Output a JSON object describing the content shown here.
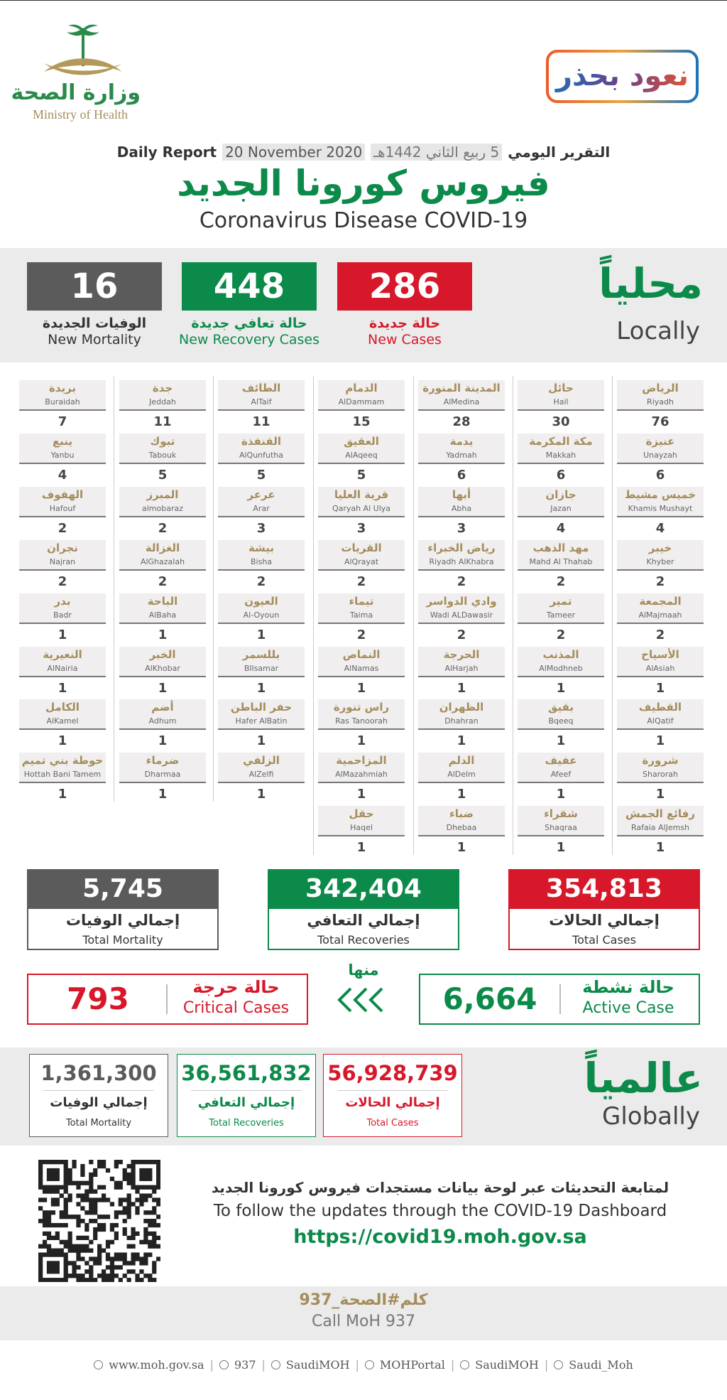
{
  "header": {
    "logo_ar": "وزارة الصحة",
    "logo_en": "Ministry of Health",
    "campaign": "نعود بحذر",
    "report_ar": "التقرير اليومي",
    "hijri": "5 ربيع الثاني 1442هـ",
    "report_en": "Daily Report",
    "date": "20 November 2020",
    "title_ar": "فيروس كورونا الجديد",
    "title_en": "Coronavirus Disease COVID-19"
  },
  "local": {
    "label_ar": "محلياً",
    "label_en": "Locally",
    "stats": [
      {
        "value": 286,
        "label_ar": "حالة جديدة",
        "label_en": "New Cases"
      },
      {
        "value": 448,
        "label_ar": "حالة تعافي جديدة",
        "label_en": "New Recovery Cases"
      },
      {
        "value": 16,
        "label_ar": "الوفيات الجديدة",
        "label_en": "New Mortality"
      }
    ]
  },
  "cities": [
    [
      {
        "ar": "الرياض",
        "en": "Riyadh",
        "cases": 76
      },
      {
        "ar": "عنيزة",
        "en": "Unayzah",
        "cases": 6
      },
      {
        "ar": "خميس مشيط",
        "en": "Khamis Mushayt",
        "cases": 4
      },
      {
        "ar": "خيبر",
        "en": "Khyber",
        "cases": 2
      },
      {
        "ar": "المجمعة",
        "en": "AlMajmaah",
        "cases": 2
      },
      {
        "ar": "الأسياح",
        "en": "AlAsiah",
        "cases": 1
      },
      {
        "ar": "القطيف",
        "en": "AlQatif",
        "cases": 1
      },
      {
        "ar": "شرورة",
        "en": "Sharorah",
        "cases": 1
      },
      {
        "ar": "رفائع الجمش",
        "en": "Rafaia AlJemsh",
        "cases": 1
      }
    ],
    [
      {
        "ar": "حائل",
        "en": "Hail",
        "cases": 30
      },
      {
        "ar": "مكة المكرمة",
        "en": "Makkah",
        "cases": 6
      },
      {
        "ar": "جازان",
        "en": "Jazan",
        "cases": 4
      },
      {
        "ar": "مهد الذهب",
        "en": "Mahd Al Thahab",
        "cases": 2
      },
      {
        "ar": "تمير",
        "en": "Tameer",
        "cases": 2
      },
      {
        "ar": "المذنب",
        "en": "AlModhneb",
        "cases": 1
      },
      {
        "ar": "بقيق",
        "en": "Bqeeq",
        "cases": 1
      },
      {
        "ar": "عفيف",
        "en": "Afeef",
        "cases": 1
      },
      {
        "ar": "شقراء",
        "en": "Shaqraa",
        "cases": 1
      }
    ],
    [
      {
        "ar": "المدينة المنورة",
        "en": "AlMedina",
        "cases": 28
      },
      {
        "ar": "يدمة",
        "en": "Yadmah",
        "cases": 6
      },
      {
        "ar": "أبها",
        "en": "Abha",
        "cases": 3
      },
      {
        "ar": "رياض الخبراء",
        "en": "Riyadh AlKhabra",
        "cases": 2
      },
      {
        "ar": "وادي الدواسر",
        "en": "Wadi ALDawasir",
        "cases": 2
      },
      {
        "ar": "الحرجة",
        "en": "AlHarjah",
        "cases": 1
      },
      {
        "ar": "الظهران",
        "en": "Dhahran",
        "cases": 1
      },
      {
        "ar": "الدلم",
        "en": "AlDelm",
        "cases": 1
      },
      {
        "ar": "ضباء",
        "en": "Dhebaa",
        "cases": 1
      }
    ],
    [
      {
        "ar": "الدمام",
        "en": "AlDammam",
        "cases": 15
      },
      {
        "ar": "العقيق",
        "en": "AlAqeeq",
        "cases": 5
      },
      {
        "ar": "قرية العليا",
        "en": "Qaryah Al Ulya",
        "cases": 3
      },
      {
        "ar": "القريات",
        "en": "AlQrayat",
        "cases": 2
      },
      {
        "ar": "تيماء",
        "en": "Taima",
        "cases": 2
      },
      {
        "ar": "النماص",
        "en": "AlNamas",
        "cases": 1
      },
      {
        "ar": "راس تنورة",
        "en": "Ras Tanoorah",
        "cases": 1
      },
      {
        "ar": "المزاحمية",
        "en": "AlMazahmiah",
        "cases": 1
      },
      {
        "ar": "حقل",
        "en": "Haqel",
        "cases": 1
      }
    ],
    [
      {
        "ar": "الطائف",
        "en": "AlTaif",
        "cases": 11
      },
      {
        "ar": "القنفذة",
        "en": "AlQunfutha",
        "cases": 5
      },
      {
        "ar": "عرعر",
        "en": "Arar",
        "cases": 3
      },
      {
        "ar": "بيشة",
        "en": "Bisha",
        "cases": 2
      },
      {
        "ar": "العيون",
        "en": "Al-Oyoun",
        "cases": 1
      },
      {
        "ar": "بللسمر",
        "en": "BIlsamar",
        "cases": 1
      },
      {
        "ar": "حفر الباطن",
        "en": "Hafer AlBatin",
        "cases": 1
      },
      {
        "ar": "الزلفي",
        "en": "AlZelfi",
        "cases": 1
      }
    ],
    [
      {
        "ar": "جدة",
        "en": "Jeddah",
        "cases": 11
      },
      {
        "ar": "تبوك",
        "en": "Tabouk",
        "cases": 5
      },
      {
        "ar": "المبرز",
        "en": "almobaraz",
        "cases": 2
      },
      {
        "ar": "الغزالة",
        "en": "AlGhazalah",
        "cases": 2
      },
      {
        "ar": "الباحة",
        "en": "AlBaha",
        "cases": 1
      },
      {
        "ar": "الخبر",
        "en": "AlKhobar",
        "cases": 1
      },
      {
        "ar": "أضم",
        "en": "Adhum",
        "cases": 1
      },
      {
        "ar": "ضرماء",
        "en": "Dharmaa",
        "cases": 1
      }
    ],
    [
      {
        "ar": "بريدة",
        "en": "Buraidah",
        "cases": 7
      },
      {
        "ar": "ينبع",
        "en": "Yanbu",
        "cases": 4
      },
      {
        "ar": "الهفوف",
        "en": "Hafouf",
        "cases": 2
      },
      {
        "ar": "نجران",
        "en": "Najran",
        "cases": 2
      },
      {
        "ar": "بدر",
        "en": "Badr",
        "cases": 1
      },
      {
        "ar": "النعيرية",
        "en": "AlNairia",
        "cases": 1
      },
      {
        "ar": "الكامل",
        "en": "AlKamel",
        "cases": 1
      },
      {
        "ar": "حوطة بني تميم",
        "en": "Hottah Bani Tamem",
        "cases": 1
      }
    ]
  ],
  "totals": [
    {
      "value": "354,813",
      "label_ar": "إجمالي الحالات",
      "label_en": "Total Cases"
    },
    {
      "value": "342,404",
      "label_ar": "إجمالي التعافي",
      "label_en": "Total Recoveries"
    },
    {
      "value": "5,745",
      "label_ar": "إجمالي الوفيات",
      "label_en": "Total Mortality"
    }
  ],
  "of_which": "منها",
  "active": {
    "value": "6,664",
    "label_ar": "حالة نشطة",
    "label_en": "Active Case"
  },
  "critical": {
    "value": 793,
    "label_ar": "حالة حرجة",
    "label_en": "Critical Cases"
  },
  "global": {
    "label_ar": "عالمياً",
    "label_en": "Globally",
    "stats": [
      {
        "value": "56,928,739",
        "label_ar": "إجمالي الحالات",
        "label_en": "Total Cases"
      },
      {
        "value": "36,561,832",
        "label_ar": "إجمالي التعافي",
        "label_en": "Total Recoveries"
      },
      {
        "value": "1,361,300",
        "label_ar": "إجمالي الوفيات",
        "label_en": "Total Mortality"
      }
    ]
  },
  "footer": {
    "follow_ar": "لمتابعة التحديثات عبر لوحة بيانات مستجدات فيروس كورونا الجديد",
    "follow_en": "To follow the updates through the COVID-19 Dashboard",
    "url": "https://covid19.moh.gov.sa",
    "call_ar": "كلم#الصحة_937",
    "call_en": "Call MoH 937",
    "links": [
      "www.moh.gov.sa",
      "937",
      "SaudiMOH",
      "MOHPortal",
      "SaudiMOH",
      "Saudi_Moh"
    ]
  }
}
